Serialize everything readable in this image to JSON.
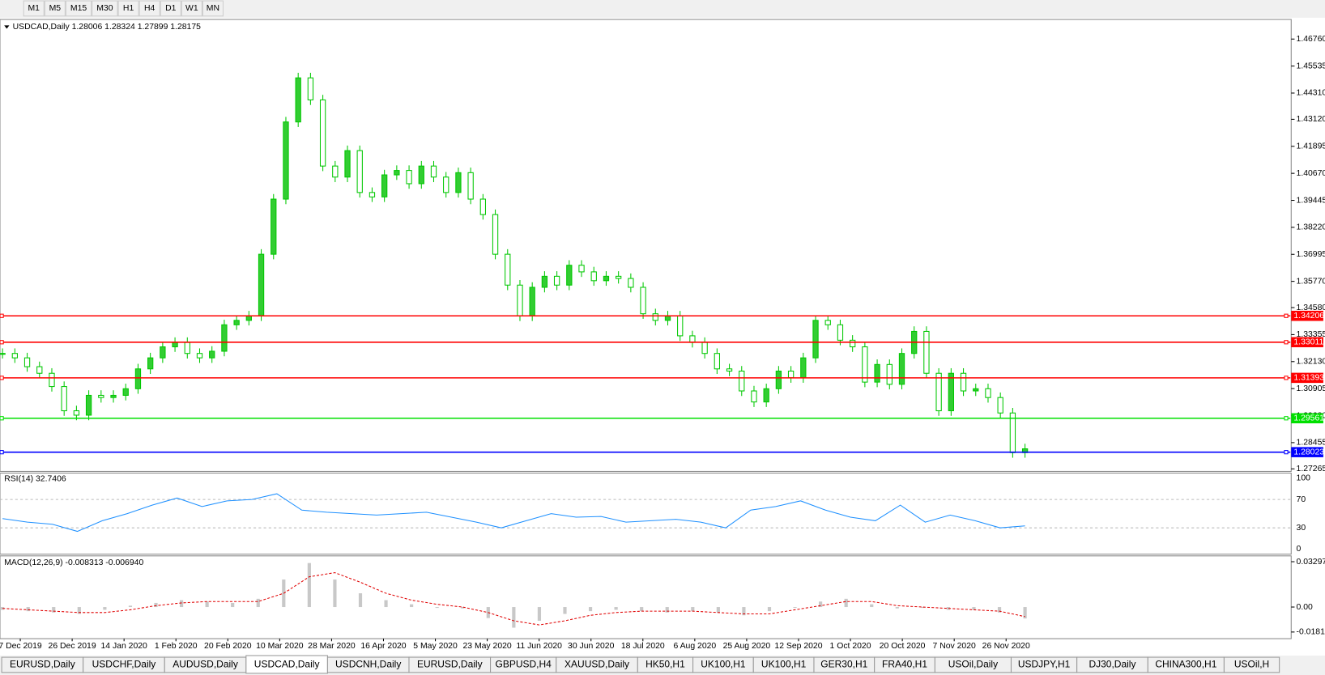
{
  "toolbar": {
    "timeframes": [
      "M1",
      "M5",
      "M15",
      "M30",
      "H1",
      "H4",
      "D1",
      "W1",
      "MN"
    ]
  },
  "price_panel": {
    "header": "USDCAD,Daily  1.28006 1.28324 1.27899 1.28175",
    "ylim": [
      1.2715,
      1.4765
    ],
    "yticks": [
      {
        "value": 1.4676,
        "label": "1.46760"
      },
      {
        "value": 1.45535,
        "label": "1.45535"
      },
      {
        "value": 1.4431,
        "label": "1.44310"
      },
      {
        "value": 1.4312,
        "label": "1.43120"
      },
      {
        "value": 1.41895,
        "label": "1.41895"
      },
      {
        "value": 1.4067,
        "label": "1.40670"
      },
      {
        "value": 1.39445,
        "label": "1.39445"
      },
      {
        "value": 1.3822,
        "label": "1.38220"
      },
      {
        "value": 1.36995,
        "label": "1.36995"
      },
      {
        "value": 1.3577,
        "label": "1.35770"
      },
      {
        "value": 1.3458,
        "label": "1.34580"
      },
      {
        "value": 1.33355,
        "label": "1.33355"
      },
      {
        "value": 1.3213,
        "label": "1.32130"
      },
      {
        "value": 1.30905,
        "label": "1.30905"
      },
      {
        "value": 1.2968,
        "label": "1.29680"
      },
      {
        "value": 1.28455,
        "label": "1.28455"
      },
      {
        "value": 1.27265,
        "label": "1.27265"
      }
    ],
    "levels": [
      {
        "value": 1.34206,
        "label": "1.34206",
        "color": "#ff0000"
      },
      {
        "value": 1.33011,
        "label": "1.33011",
        "color": "#ff0000"
      },
      {
        "value": 1.31393,
        "label": "1.31393",
        "color": "#ff0000"
      },
      {
        "value": 1.29561,
        "label": "1.29561",
        "color": "#00e000"
      },
      {
        "value": 1.28023,
        "label": "1.28023",
        "color": "#0000ff"
      }
    ],
    "closes": [
      1.325,
      1.323,
      1.319,
      1.316,
      1.31,
      1.299,
      1.297,
      1.306,
      1.305,
      1.306,
      1.309,
      1.318,
      1.323,
      1.328,
      1.33,
      1.325,
      1.323,
      1.326,
      1.338,
      1.34,
      1.342,
      1.37,
      1.395,
      1.43,
      1.45,
      1.44,
      1.41,
      1.405,
      1.417,
      1.398,
      1.396,
      1.406,
      1.408,
      1.402,
      1.41,
      1.405,
      1.398,
      1.407,
      1.395,
      1.388,
      1.37,
      1.356,
      1.342,
      1.355,
      1.36,
      1.356,
      1.365,
      1.362,
      1.358,
      1.36,
      1.359,
      1.355,
      1.343,
      1.34,
      1.342,
      1.333,
      1.33,
      1.325,
      1.318,
      1.317,
      1.308,
      1.303,
      1.309,
      1.317,
      1.314,
      1.323,
      1.34,
      1.338,
      1.331,
      1.328,
      1.312,
      1.32,
      1.311,
      1.325,
      1.335,
      1.316,
      1.299,
      1.316,
      1.308,
      1.309,
      1.305,
      1.298,
      1.28,
      1.28175
    ]
  },
  "rsi_panel": {
    "header": "RSI(14) 32.7406",
    "ylim": [
      0,
      100
    ],
    "yticks": [
      100,
      70,
      30,
      0
    ],
    "values": [
      43,
      38,
      35,
      25,
      40,
      50,
      62,
      72,
      60,
      68,
      70,
      78,
      55,
      52,
      50,
      48,
      50,
      52,
      45,
      38,
      30,
      40,
      50,
      45,
      46,
      38,
      40,
      42,
      38,
      30,
      55,
      60,
      68,
      55,
      45,
      40,
      62,
      38,
      48,
      40,
      30,
      32.7406
    ]
  },
  "macd_panel": {
    "header": "MACD(12,26,9) -0.008313 -0.006940",
    "ylim": [
      -0.023,
      0.0372
    ],
    "yticks": [
      {
        "value": 0.032972,
        "label": "0.032972"
      },
      {
        "value": 0,
        "label": "0.00"
      },
      {
        "value": -0.018154,
        "label": "-0.018154"
      }
    ],
    "histogram": [
      -0.002,
      -0.003,
      -0.004,
      -0.005,
      -0.002,
      0.001,
      0.003,
      0.005,
      0.004,
      0.003,
      0.006,
      0.02,
      0.032,
      0.02,
      0.01,
      0.005,
      0.002,
      0,
      -0.001,
      -0.008,
      -0.015,
      -0.01,
      -0.005,
      -0.003,
      -0.002,
      -0.003,
      -0.004,
      -0.003,
      -0.004,
      -0.006,
      -0.003,
      0,
      0.004,
      0.006,
      0.002,
      -0.001,
      0,
      -0.002,
      -0.002,
      -0.004,
      -0.008313
    ],
    "signal": [
      -0.001,
      -0.002,
      -0.003,
      -0.004,
      -0.004,
      -0.002,
      0.001,
      0.003,
      0.004,
      0.004,
      0.004,
      0.01,
      0.022,
      0.025,
      0.018,
      0.01,
      0.005,
      0.002,
      0,
      -0.004,
      -0.01,
      -0.013,
      -0.01,
      -0.006,
      -0.004,
      -0.003,
      -0.003,
      -0.003,
      -0.004,
      -0.005,
      -0.005,
      -0.002,
      0.001,
      0.004,
      0.004,
      0.001,
      0,
      -0.001,
      -0.002,
      -0.003,
      -0.00694
    ]
  },
  "date_axis": [
    "7 Dec 2019",
    "26 Dec 2019",
    "14 Jan 2020",
    "1 Feb 2020",
    "20 Feb 2020",
    "10 Mar 2020",
    "28 Mar 2020",
    "16 Apr 2020",
    "5 May 2020",
    "23 May 2020",
    "11 Jun 2020",
    "30 Jun 2020",
    "18 Jul 2020",
    "6 Aug 2020",
    "25 Aug 2020",
    "12 Sep 2020",
    "1 Oct 2020",
    "20 Oct 2020",
    "7 Nov 2020",
    "26 Nov 2020"
  ],
  "tabs": [
    "EURUSD,Daily",
    "USDCHF,Daily",
    "AUDUSD,Daily",
    "USDCAD,Daily",
    "USDCNH,Daily",
    "EURUSD,Daily",
    "GBPUSD,H4",
    "XAUUSD,Daily",
    "HK50,H1",
    "UK100,H1",
    "UK100,H1",
    "GER30,H1",
    "FRA40,H1",
    "USOil,Daily",
    "USDJPY,H1",
    "DJ30,Daily",
    "CHINA300,H1",
    "USOil,H"
  ],
  "active_tab": 3
}
